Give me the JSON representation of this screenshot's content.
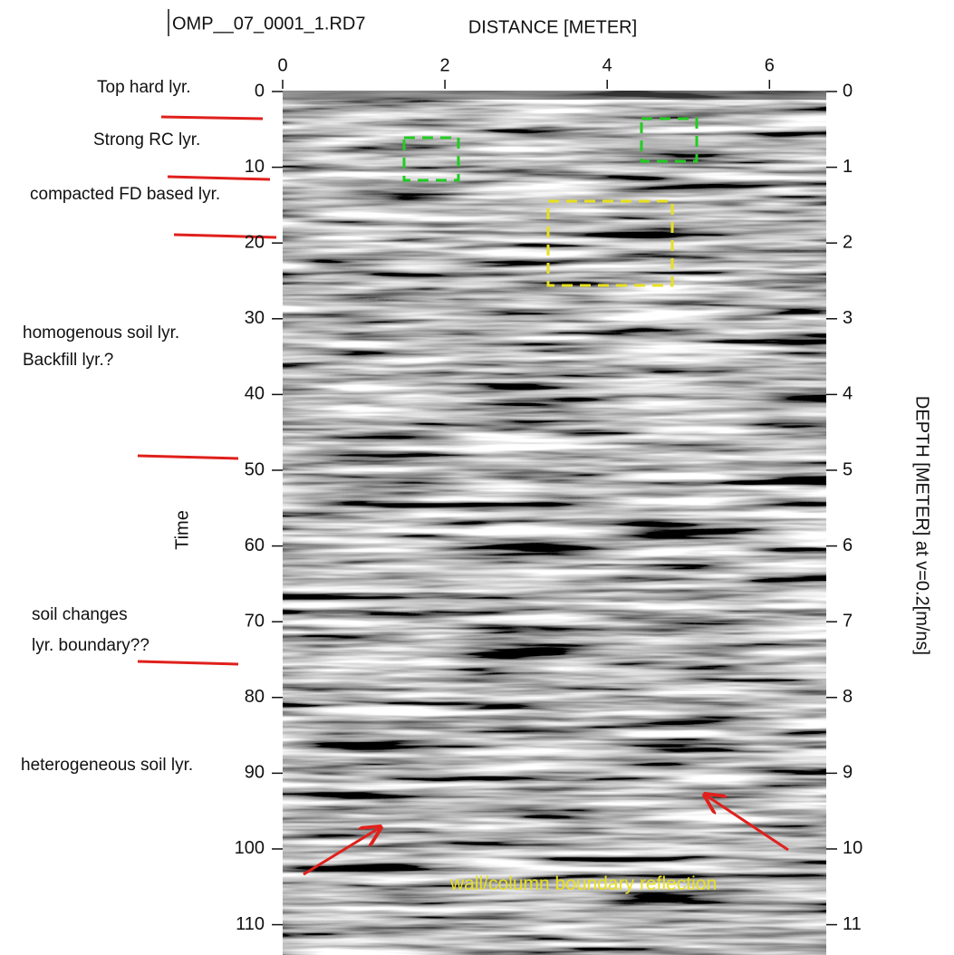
{
  "chart_data": {
    "type": "radargram",
    "title": "OMP__07_0001_1.RD7",
    "x_label": "DISTANCE [METER]",
    "y_label": "Time",
    "y2_label": "DEPTH [METER] at v=0.2[m/ns]",
    "xlim": [
      0,
      6.7
    ],
    "xticks": [
      0,
      2,
      4,
      6
    ],
    "ylim": [
      0,
      114
    ],
    "yticks": [
      0,
      10,
      20,
      30,
      40,
      50,
      60,
      70,
      80,
      90,
      100,
      110
    ],
    "y2lim": [
      0,
      11.4
    ],
    "y2ticks": [
      0,
      1,
      2,
      3,
      4,
      5,
      6,
      7,
      8,
      9,
      10,
      11
    ],
    "annotations": [
      "Top hard lyr.",
      "Strong RC lyr.",
      "compacted FD based lyr.",
      "homogenous soil lyr.",
      "Backfill lyr.?",
      "soil changes",
      "lyr. boundary??",
      "heterogeneous soil lyr.",
      "wall/column boundary reflection"
    ]
  }
}
